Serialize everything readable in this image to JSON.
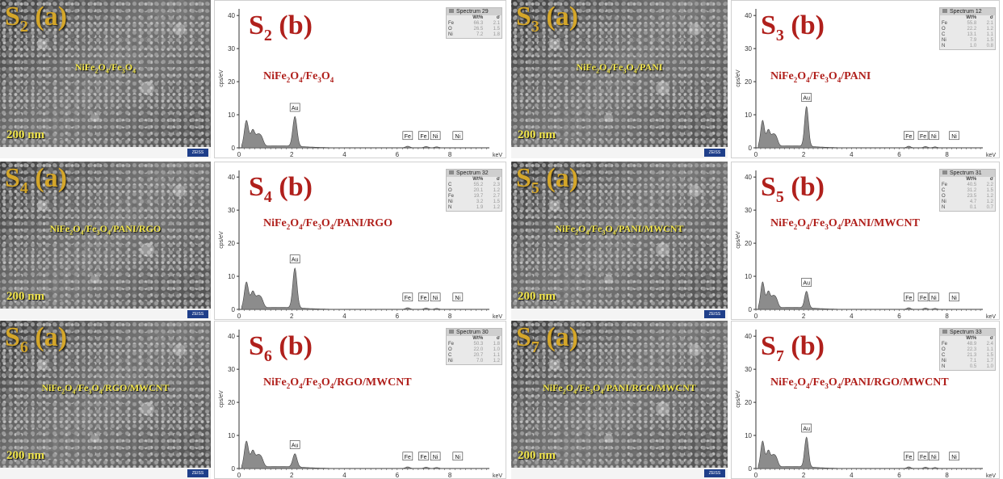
{
  "panels": [
    {
      "sem_label": "S",
      "sem_sub": "2",
      "sem_suffix": "(a)",
      "scale": "200 nm",
      "comp_html": "NiFe<sub>2</sub>O<sub>4</sub>/Fe<sub>3</sub>O<sub>4</sub>",
      "eds_label": "S",
      "eds_sub": "2",
      "eds_suffix": "(b)",
      "spectrum": "Spectrum 29",
      "rows": [
        [
          "Fe",
          "66.3",
          "2.1"
        ],
        [
          "O",
          "26.5",
          "1.5"
        ],
        [
          "Ni",
          "7.2",
          "1.8"
        ]
      ],
      "au_peak": 9
    },
    {
      "sem_label": "S",
      "sem_sub": "3",
      "sem_suffix": "(a)",
      "scale": "200 nm",
      "comp_html": "NiFe<sub>2</sub>O<sub>4</sub>/Fe<sub>3</sub>O<sub>4</sub>/PANI",
      "eds_label": "S",
      "eds_sub": "3",
      "eds_suffix": "(b)",
      "spectrum": "Spectrum 12",
      "rows": [
        [
          "Fe",
          "55.8",
          "2.1"
        ],
        [
          "O",
          "22.2",
          "1.2"
        ],
        [
          "C",
          "13.1",
          "1.1"
        ],
        [
          "Ni",
          "7.9",
          "1.5"
        ],
        [
          "N",
          "1.0",
          "0.8"
        ]
      ],
      "au_peak": 12
    },
    {
      "sem_label": "S",
      "sem_sub": "4",
      "sem_suffix": "(a)",
      "scale": "200 nm",
      "comp_html": "NiFe<sub>2</sub>O<sub>4</sub>/Fe<sub>3</sub>O<sub>4</sub>/PANI/RGO",
      "eds_label": "S",
      "eds_sub": "4",
      "eds_suffix": "(b)",
      "spectrum": "Spectrum 32",
      "rows": [
        [
          "C",
          "55.2",
          "2.3"
        ],
        [
          "O",
          "20.1",
          "1.2"
        ],
        [
          "Fe",
          "19.7",
          "2.7"
        ],
        [
          "Ni",
          "3.2",
          "1.5"
        ],
        [
          "N",
          "1.9",
          "1.2"
        ]
      ],
      "au_peak": 12
    },
    {
      "sem_label": "S",
      "sem_sub": "5",
      "sem_suffix": "(a)",
      "scale": "200 nm",
      "comp_html": "NiFe<sub>2</sub>O<sub>4</sub>/Fe<sub>3</sub>O<sub>4</sub>/PANI/MWCNT",
      "eds_label": "S",
      "eds_sub": "5",
      "eds_suffix": "(b)",
      "spectrum": "Spectrum 31",
      "rows": [
        [
          "Fe",
          "40.5",
          "2.2"
        ],
        [
          "C",
          "31.2",
          "1.5"
        ],
        [
          "O",
          "23.5",
          "1.2"
        ],
        [
          "Ni",
          "4.7",
          "1.2"
        ],
        [
          "N",
          "0.1",
          "0.7"
        ]
      ],
      "au_peak": 5
    },
    {
      "sem_label": "S",
      "sem_sub": "6",
      "sem_suffix": "(a)",
      "scale": "200 nm",
      "comp_html": "NiFe<sub>2</sub>O<sub>4</sub>/Fe<sub>3</sub>O<sub>4</sub>/RGO/MWCNT",
      "eds_label": "S",
      "eds_sub": "6",
      "eds_suffix": "(b)",
      "spectrum": "Spectrum 30",
      "rows": [
        [
          "Fe",
          "50.3",
          "1.8"
        ],
        [
          "O",
          "22.0",
          "1.0"
        ],
        [
          "C",
          "20.7",
          "1.1"
        ],
        [
          "Ni",
          "7.0",
          "1.2"
        ]
      ],
      "au_peak": 4
    },
    {
      "sem_label": "S",
      "sem_sub": "7",
      "sem_suffix": "(a)",
      "scale": "200 nm",
      "comp_html": "NiFe<sub>2</sub>O<sub>4</sub>/Fe<sub>3</sub>O<sub>4</sub>/PANI/RGO/MWCNT",
      "eds_label": "S",
      "eds_sub": "7",
      "eds_suffix": "(b)",
      "spectrum": "Spectrum 33",
      "rows": [
        [
          "Fe",
          "48.9",
          "2.4"
        ],
        [
          "O",
          "22.3",
          "1.1"
        ],
        [
          "C",
          "21.3",
          "1.5"
        ],
        [
          "Ni",
          "7.1",
          "1.7"
        ],
        [
          "N",
          "0.5",
          "1.0"
        ]
      ],
      "au_peak": 9
    }
  ],
  "axis": {
    "ylabel": "cps/eV",
    "xunit": "keV",
    "xticks": [
      "0",
      "2",
      "4",
      "6",
      "8"
    ],
    "yticks": [
      "0",
      "10",
      "20",
      "30",
      "40"
    ]
  },
  "legend_header": {
    "wt": "Wt%",
    "sigma": "σ"
  },
  "peak_labels": {
    "au": "Au",
    "fe": "Fe",
    "ni": "Ni",
    "c": "C",
    "o": "O",
    "n": "N"
  },
  "colors": {
    "panel_label": "#b0201c",
    "sem_label": "#d4a62a",
    "sem_text": "#f0e44a",
    "spectrum_fill": "#8c8c8c"
  },
  "chart_data": [
    {
      "type": "bar",
      "title": "Spectrum 29",
      "categories": [
        "Fe",
        "O",
        "Ni"
      ],
      "values": [
        66.3,
        26.5,
        7.2
      ],
      "ylabel": "Wt%"
    },
    {
      "type": "bar",
      "title": "Spectrum 12",
      "categories": [
        "Fe",
        "O",
        "C",
        "Ni",
        "N"
      ],
      "values": [
        55.8,
        22.2,
        13.1,
        7.9,
        1.0
      ],
      "ylabel": "Wt%"
    },
    {
      "type": "bar",
      "title": "Spectrum 32",
      "categories": [
        "C",
        "O",
        "Fe",
        "Ni",
        "N"
      ],
      "values": [
        55.2,
        20.1,
        19.7,
        3.2,
        1.9
      ],
      "ylabel": "Wt%"
    },
    {
      "type": "bar",
      "title": "Spectrum 31",
      "categories": [
        "Fe",
        "C",
        "O",
        "Ni",
        "N"
      ],
      "values": [
        40.5,
        31.2,
        23.5,
        4.7,
        0.1
      ],
      "ylabel": "Wt%"
    },
    {
      "type": "bar",
      "title": "Spectrum 30",
      "categories": [
        "Fe",
        "O",
        "C",
        "Ni"
      ],
      "values": [
        50.3,
        22.0,
        20.7,
        7.0
      ],
      "ylabel": "Wt%"
    },
    {
      "type": "bar",
      "title": "Spectrum 33",
      "categories": [
        "Fe",
        "O",
        "C",
        "Ni",
        "N"
      ],
      "values": [
        48.9,
        22.3,
        21.3,
        7.1,
        0.5
      ],
      "ylabel": "Wt%"
    }
  ]
}
